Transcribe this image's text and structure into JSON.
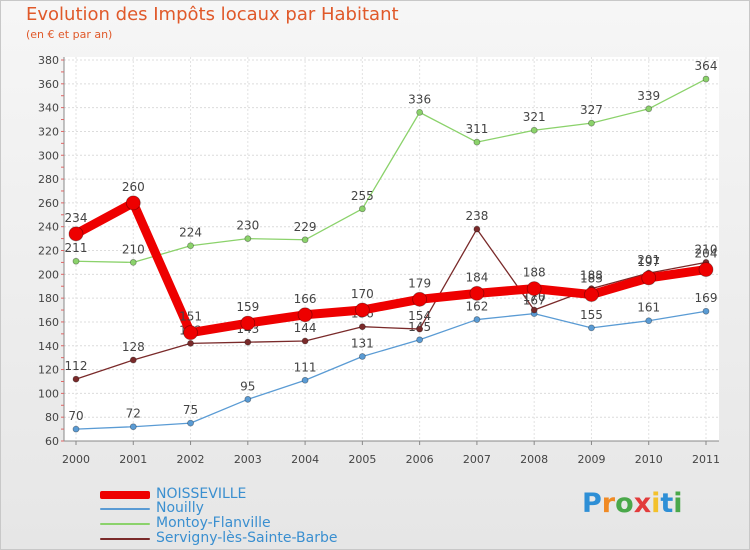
{
  "title": "Evolution des Impôts locaux par Habitant",
  "subtitle": "(en € et par an)",
  "brand": "Proxiti",
  "chart_data": {
    "type": "line",
    "x": [
      "2000",
      "2001",
      "2002",
      "2003",
      "2004",
      "2005",
      "2006",
      "2007",
      "2008",
      "2009",
      "2010",
      "2011"
    ],
    "ylim": [
      60,
      380
    ],
    "yticks": [
      "60",
      "80",
      "100",
      "120",
      "140",
      "160",
      "180",
      "200",
      "220",
      "240",
      "260",
      "280",
      "300",
      "320",
      "340",
      "360",
      "380"
    ],
    "grid": true,
    "legend_position": "bottom-left",
    "series": [
      {
        "name": "Nouilly",
        "color": "#5a9bd4",
        "values": [
          70,
          72,
          75,
          95,
          111,
          131,
          145,
          162,
          167,
          155,
          161,
          169
        ],
        "labels": [
          "70",
          "72",
          "75",
          "95",
          "111",
          "131",
          "145",
          "162",
          "167",
          "155",
          "161",
          "169"
        ]
      },
      {
        "name": "Montoy-Flanville",
        "color": "#8bd26b",
        "values": [
          211,
          210,
          224,
          230,
          229,
          255,
          336,
          311,
          321,
          327,
          339,
          364
        ],
        "labels": [
          "211",
          "210",
          "224",
          "230",
          "229",
          "255",
          "336",
          "311",
          "321",
          "327",
          "339",
          "364"
        ]
      },
      {
        "name": "Servigny-lès-Sainte-Barbe",
        "color": "#7a2a2a",
        "values": [
          112,
          128,
          142,
          143,
          144,
          156,
          154,
          238,
          170,
          188,
          201,
          210
        ],
        "labels": [
          "112",
          "128",
          "142",
          "143",
          "144",
          "156",
          "154",
          "238",
          "170",
          "188",
          "201",
          "210"
        ]
      },
      {
        "name": "NOISSEVILLE",
        "color": "#ee0000",
        "values": [
          234,
          260,
          151,
          159,
          166,
          170,
          179,
          184,
          188,
          183,
          197,
          204
        ],
        "labels": [
          "234",
          "260",
          "151",
          "159",
          "166",
          "170",
          "179",
          "184",
          "188",
          "183",
          "197",
          "204"
        ]
      }
    ]
  }
}
